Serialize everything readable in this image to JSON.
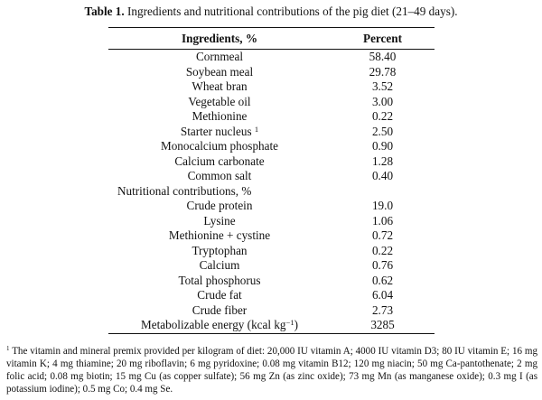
{
  "caption": {
    "label": "Table 1.",
    "text": "Ingredients and nutritional contributions of the pig diet (21–49 days)."
  },
  "header": {
    "col1": "Ingredients, %",
    "col2": "Percent"
  },
  "rows": [
    {
      "name": "Cornmeal",
      "value": "58.40"
    },
    {
      "name": "Soybean meal",
      "value": "29.78"
    },
    {
      "name": "Wheat bran",
      "value": "3.52"
    },
    {
      "name": "Vegetable oil",
      "value": "3.00"
    },
    {
      "name": "Methionine",
      "value": "0.22"
    },
    {
      "name": "Starter nucleus",
      "sup": "1",
      "value": "2.50"
    },
    {
      "name": "Monocalcium phosphate",
      "value": "0.90"
    },
    {
      "name": "Calcium carbonate",
      "value": "1.28"
    },
    {
      "name": "Common salt",
      "value": "0.40"
    },
    {
      "name": "Nutritional contributions, %",
      "value": "",
      "section": true
    },
    {
      "name": "Crude protein",
      "value": "19.0"
    },
    {
      "name": "Lysine",
      "value": "1.06"
    },
    {
      "name": "Methionine + cystine",
      "value": "0.72"
    },
    {
      "name": "Tryptophan",
      "value": "0.22"
    },
    {
      "name": "Calcium",
      "value": "0.76"
    },
    {
      "name": "Total phosphorus",
      "value": "0.62"
    },
    {
      "name": "Crude fat",
      "value": "6.04"
    },
    {
      "name": "Crude fiber",
      "value": "2.73"
    },
    {
      "name": "Metabolizable energy (kcal kg",
      "sup": "−1",
      "suffix": ")",
      "value": "3285"
    }
  ],
  "footnote": {
    "marker": "1",
    "text": "The vitamin and mineral premix provided per kilogram of diet: 20,000 IU vitamin A; 4000 IU vitamin D3; 80 IU vitamin E; 16 mg vitamin K; 4 mg thiamine; 20 mg riboflavin; 6 mg pyridoxine; 0.08 mg vitamin B12; 120 mg niacin; 50 mg Ca-pantothenate; 2 mg folic acid; 0.08 mg biotin; 15 mg Cu (as copper sulfate); 56 mg Zn (as zinc oxide); 73 mg Mn (as manganese oxide); 0.3 mg I (as potassium iodine); 0.5 mg Co; 0.4 mg Se."
  }
}
